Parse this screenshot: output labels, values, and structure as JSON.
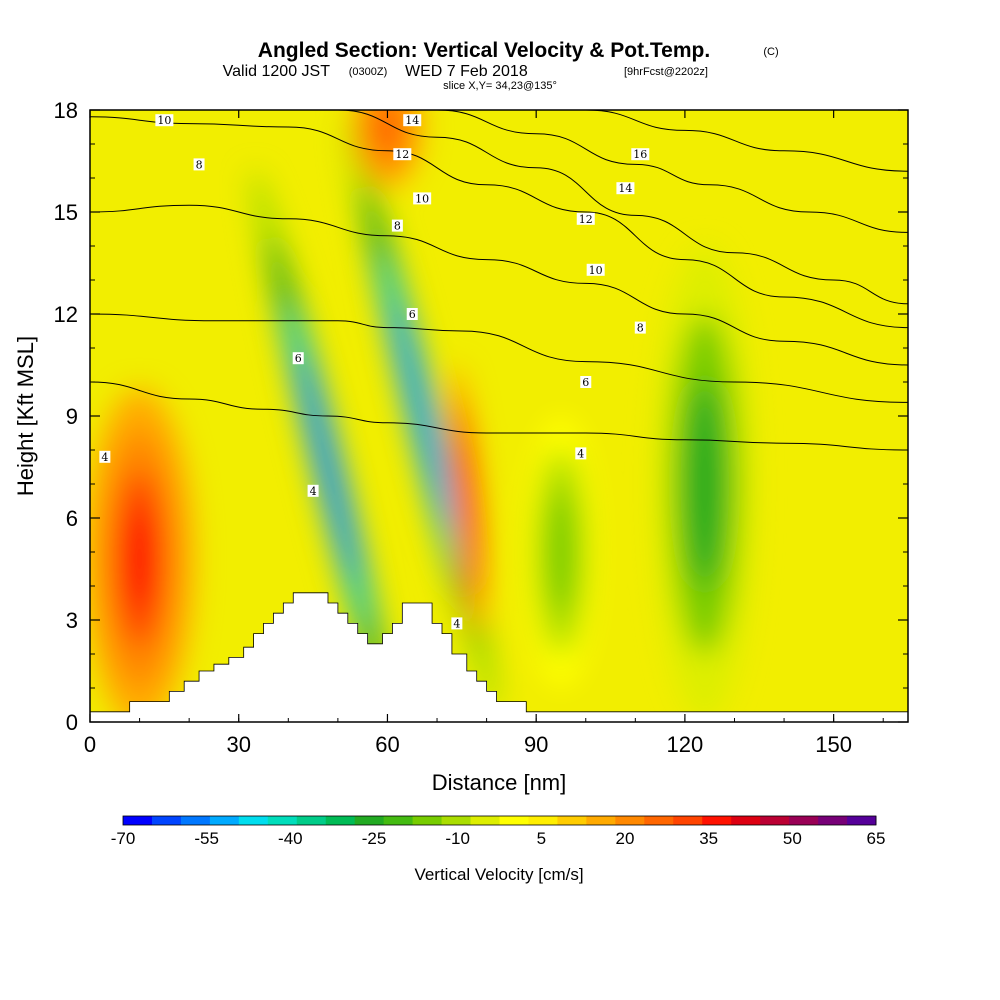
{
  "title": {
    "main": "Angled Section: Vertical Velocity & Pot.Temp.",
    "main_unit": "(C)",
    "valid_prefix": "Valid 1200 JST",
    "valid_utc": "(0300Z)",
    "valid_date": "WED 7 Feb 2018",
    "forecast": "[9hrFcst@2202z]",
    "slice": "slice X,Y= 34,23@135°"
  },
  "chart_data": {
    "type": "heatmap",
    "xlabel": "Distance [nm]",
    "ylabel": "Height [Kft MSL]",
    "xlim": [
      0,
      165
    ],
    "ylim": [
      0,
      18
    ],
    "x_ticks": [
      "0",
      "30",
      "60",
      "90",
      "120",
      "150"
    ],
    "y_ticks": [
      "0",
      "3",
      "6",
      "9",
      "12",
      "15",
      "18"
    ],
    "colorbar": {
      "title": "Vertical Velocity [cm/s]",
      "labels": [
        "-70",
        "-55",
        "-40",
        "-25",
        "-10",
        "5",
        "20",
        "35",
        "50",
        "65"
      ],
      "range": [
        -70,
        65
      ],
      "colors": [
        "#0000ff",
        "#0044ff",
        "#0077ff",
        "#00aaff",
        "#00ddee",
        "#00ddbb",
        "#00cc88",
        "#00bb55",
        "#22aa22",
        "#44bb11",
        "#77cc00",
        "#aadd00",
        "#ddee00",
        "#ffff00",
        "#ffee00",
        "#ffcc00",
        "#ffaa00",
        "#ff8800",
        "#ff6600",
        "#ff4400",
        "#ff1100",
        "#dd0011",
        "#bb0033",
        "#990055",
        "#770077",
        "#550099"
      ]
    },
    "terrain_kft": [
      [
        0,
        0.3
      ],
      [
        8,
        0.3
      ],
      [
        8,
        0.6
      ],
      [
        16,
        0.6
      ],
      [
        16,
        0.9
      ],
      [
        19,
        0.9
      ],
      [
        19,
        1.2
      ],
      [
        22,
        1.2
      ],
      [
        22,
        1.5
      ],
      [
        25,
        1.5
      ],
      [
        25,
        1.7
      ],
      [
        28,
        1.7
      ],
      [
        28,
        1.9
      ],
      [
        31,
        1.9
      ],
      [
        31,
        2.2
      ],
      [
        33,
        2.2
      ],
      [
        33,
        2.6
      ],
      [
        35,
        2.6
      ],
      [
        35,
        2.9
      ],
      [
        37,
        2.9
      ],
      [
        37,
        3.2
      ],
      [
        39,
        3.2
      ],
      [
        39,
        3.5
      ],
      [
        41,
        3.5
      ],
      [
        41,
        3.8
      ],
      [
        48,
        3.8
      ],
      [
        48,
        3.5
      ],
      [
        50,
        3.5
      ],
      [
        50,
        3.2
      ],
      [
        52,
        3.2
      ],
      [
        52,
        2.9
      ],
      [
        54,
        2.9
      ],
      [
        54,
        2.6
      ],
      [
        56,
        2.6
      ],
      [
        56,
        2.3
      ],
      [
        59,
        2.3
      ],
      [
        59,
        2.6
      ],
      [
        61,
        2.6
      ],
      [
        61,
        2.9
      ],
      [
        63,
        2.9
      ],
      [
        63,
        3.5
      ],
      [
        69,
        3.5
      ],
      [
        69,
        2.9
      ],
      [
        71,
        2.9
      ],
      [
        71,
        2.6
      ],
      [
        73,
        2.6
      ],
      [
        73,
        2.0
      ],
      [
        76,
        2.0
      ],
      [
        76,
        1.5
      ],
      [
        78,
        1.5
      ],
      [
        78,
        1.2
      ],
      [
        80,
        1.2
      ],
      [
        80,
        0.9
      ],
      [
        82,
        0.9
      ],
      [
        82,
        0.6
      ],
      [
        88,
        0.6
      ],
      [
        88,
        0.3
      ],
      [
        165,
        0.3
      ]
    ],
    "velocity_features": [
      {
        "kind": "updraft",
        "x": 10,
        "y": 4.8,
        "peak_cm_s": 38
      },
      {
        "kind": "downdraft",
        "x": 48,
        "y": 7.5,
        "peak_cm_s": -60
      },
      {
        "kind": "downdraft",
        "x": 67,
        "y": 9.0,
        "peak_cm_s": -58
      },
      {
        "kind": "updraft",
        "x": 76,
        "y": 6.5,
        "peak_cm_s": 33
      },
      {
        "kind": "updraft",
        "x": 60,
        "y": 17.5,
        "peak_cm_s": 25
      },
      {
        "kind": "downdraft",
        "x": 124,
        "y": 7.0,
        "peak_cm_s": -25
      },
      {
        "kind": "downdraft",
        "x": 95,
        "y": 5.0,
        "peak_cm_s": -17
      }
    ],
    "isentropes_C": [
      {
        "theta": "4",
        "points": [
          [
            0,
            10.0
          ],
          [
            20,
            9.5
          ],
          [
            35,
            9.2
          ],
          [
            48,
            9.0
          ],
          [
            60,
            8.8
          ],
          [
            80,
            8.5
          ],
          [
            100,
            8.5
          ],
          [
            120,
            8.3
          ],
          [
            140,
            8.2
          ],
          [
            165,
            8.0
          ]
        ]
      },
      {
        "theta": "6",
        "points": [
          [
            0,
            12.0
          ],
          [
            25,
            11.8
          ],
          [
            40,
            11.8
          ],
          [
            50,
            11.8
          ],
          [
            60,
            11.6
          ],
          [
            75,
            11.5
          ],
          [
            100,
            10.6
          ],
          [
            130,
            10.0
          ],
          [
            165,
            9.4
          ]
        ]
      },
      {
        "theta": "8",
        "points": [
          [
            0,
            15.0
          ],
          [
            20,
            15.2
          ],
          [
            40,
            14.8
          ],
          [
            60,
            14.3
          ],
          [
            80,
            13.6
          ],
          [
            100,
            12.9
          ],
          [
            120,
            12.0
          ],
          [
            140,
            11.2
          ],
          [
            165,
            10.5
          ]
        ]
      },
      {
        "theta": "10",
        "points": [
          [
            0,
            17.8
          ],
          [
            20,
            17.6
          ],
          [
            40,
            17.5
          ],
          [
            60,
            16.8
          ],
          [
            80,
            15.8
          ],
          [
            100,
            15.0
          ],
          [
            120,
            13.6
          ],
          [
            140,
            12.5
          ],
          [
            165,
            11.6
          ]
        ]
      },
      {
        "theta": "12",
        "points": [
          [
            50,
            18.0
          ],
          [
            70,
            17.2
          ],
          [
            90,
            16.3
          ],
          [
            110,
            14.9
          ],
          [
            130,
            13.8
          ],
          [
            150,
            13.0
          ],
          [
            165,
            12.3
          ]
        ]
      },
      {
        "theta": "14",
        "points": [
          [
            70,
            18.0
          ],
          [
            90,
            17.3
          ],
          [
            110,
            16.4
          ],
          [
            125,
            15.8
          ],
          [
            145,
            15.0
          ],
          [
            165,
            14.4
          ]
        ]
      },
      {
        "theta": "16",
        "points": [
          [
            100,
            18.0
          ],
          [
            120,
            17.4
          ],
          [
            140,
            16.8
          ],
          [
            165,
            16.2
          ]
        ]
      }
    ],
    "contour_labels": [
      {
        "text": "10",
        "x": 15,
        "y": 17.7
      },
      {
        "text": "8",
        "x": 22,
        "y": 16.4
      },
      {
        "text": "4",
        "x": 3,
        "y": 7.8
      },
      {
        "text": "14",
        "x": 65,
        "y": 17.7
      },
      {
        "text": "12",
        "x": 63,
        "y": 16.7
      },
      {
        "text": "10",
        "x": 67,
        "y": 15.4
      },
      {
        "text": "8",
        "x": 62,
        "y": 14.6
      },
      {
        "text": "6",
        "x": 65,
        "y": 12.0
      },
      {
        "text": "6",
        "x": 42,
        "y": 10.7
      },
      {
        "text": "4",
        "x": 45,
        "y": 6.8
      },
      {
        "text": "4",
        "x": 74,
        "y": 2.9
      },
      {
        "text": "16",
        "x": 111,
        "y": 16.7
      },
      {
        "text": "14",
        "x": 108,
        "y": 15.7
      },
      {
        "text": "12",
        "x": 100,
        "y": 14.8
      },
      {
        "text": "10",
        "x": 102,
        "y": 13.3
      },
      {
        "text": "8",
        "x": 111,
        "y": 11.6
      },
      {
        "text": "6",
        "x": 100,
        "y": 10.0
      },
      {
        "text": "4",
        "x": 99,
        "y": 7.9
      }
    ]
  }
}
